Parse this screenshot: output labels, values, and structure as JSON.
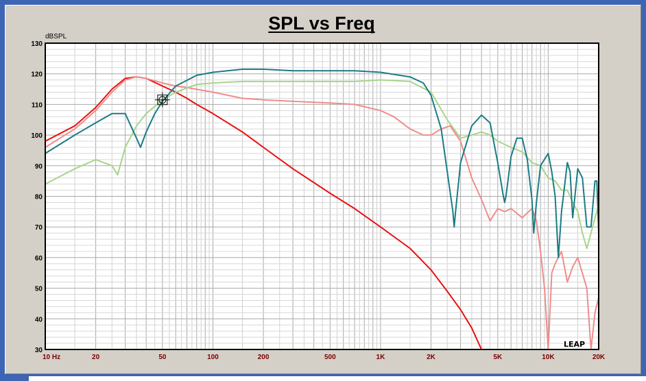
{
  "chart_data": {
    "type": "line",
    "title": "SPL vs Freq",
    "ylabel": "dBSPL",
    "xscale": "log",
    "xlim": [
      10,
      20000
    ],
    "ylim": [
      30,
      130
    ],
    "grid": true,
    "y_ticks": [
      30,
      40,
      50,
      60,
      70,
      80,
      90,
      100,
      110,
      120,
      130
    ],
    "x_ticks": [
      {
        "value": 10,
        "label": "10 Hz"
      },
      {
        "value": 20,
        "label": "20"
      },
      {
        "value": 50,
        "label": "50"
      },
      {
        "value": 100,
        "label": "100"
      },
      {
        "value": 200,
        "label": "200"
      },
      {
        "value": 500,
        "label": "500"
      },
      {
        "value": 1000,
        "label": "1K"
      },
      {
        "value": 2000,
        "label": "2K"
      },
      {
        "value": 5000,
        "label": "5K"
      },
      {
        "value": 10000,
        "label": "10K"
      },
      {
        "value": 20000,
        "label": "20K"
      }
    ],
    "cursor": {
      "x": 50,
      "y": 111.5
    },
    "series": [
      {
        "color": "#e81010",
        "x": [
          10,
          15,
          20,
          25,
          30,
          35,
          40,
          50,
          60,
          70,
          80,
          100,
          150,
          200,
          300,
          500,
          700,
          1000,
          1500,
          2000,
          2500,
          3000,
          3500,
          4000
        ],
        "y": [
          98,
          103,
          109,
          115,
          118.5,
          119,
          118.5,
          116,
          114,
          112,
          110,
          107,
          101,
          96,
          89,
          81,
          76,
          70,
          63,
          56,
          49,
          43,
          37,
          30
        ]
      },
      {
        "color": "#f08c8c",
        "x": [
          10,
          15,
          20,
          25,
          30,
          35,
          40,
          50,
          60,
          70,
          100,
          150,
          200,
          300,
          500,
          700,
          1000,
          1200,
          1500,
          1800,
          2000,
          2300,
          2600,
          3000,
          3500,
          4000,
          4500,
          5000,
          5500,
          6000,
          7000,
          8000,
          8500,
          9000,
          9500,
          10000,
          10500,
          11000,
          12000,
          13000,
          14000,
          15000,
          17000,
          18000,
          19000,
          20000
        ],
        "y": [
          96,
          102,
          108,
          114,
          118,
          119,
          118.5,
          117,
          116,
          115.5,
          114,
          112,
          111.5,
          111,
          110.5,
          110,
          108,
          106,
          102,
          100,
          100,
          102,
          103,
          98,
          86,
          79,
          72,
          76,
          75,
          76,
          73,
          76,
          72,
          62,
          50,
          30,
          55,
          58,
          62,
          52,
          57,
          60,
          50,
          30,
          42,
          47
        ]
      },
      {
        "color": "#a8d48a",
        "x": [
          10,
          15,
          20,
          25,
          27,
          30,
          35,
          40,
          50,
          60,
          80,
          100,
          150,
          200,
          300,
          500,
          700,
          1000,
          1500,
          2000,
          2500,
          3000,
          3500,
          4000,
          4500,
          5000,
          6000,
          7000,
          8000,
          9000,
          10000,
          11000,
          12000,
          13000,
          14000,
          15000,
          16000,
          17000,
          18000,
          19000,
          20000
        ],
        "y": [
          84,
          89,
          92,
          90,
          87,
          96,
          103,
          107,
          111.5,
          114,
          116.5,
          117,
          117.5,
          117.5,
          117.5,
          117.5,
          117.5,
          118,
          117.5,
          114,
          105,
          99,
          100,
          101,
          100,
          98,
          96,
          94.5,
          91,
          90,
          86,
          85,
          82,
          82,
          78,
          75,
          68,
          63,
          68,
          73,
          77
        ]
      },
      {
        "color": "#1a7c84",
        "x": [
          10,
          15,
          20,
          25,
          30,
          35,
          37,
          40,
          45,
          50,
          60,
          80,
          100,
          150,
          200,
          300,
          500,
          700,
          1000,
          1500,
          1800,
          2000,
          2300,
          2500,
          2700,
          2750,
          2800,
          3000,
          3500,
          4000,
          4500,
          5000,
          5400,
          5500,
          5600,
          6000,
          6500,
          7000,
          7500,
          8000,
          8200,
          8500,
          9000,
          10000,
          10500,
          11000,
          11500,
          12000,
          13000,
          13500,
          14000,
          15000,
          16000,
          17000,
          18000,
          19000,
          19500,
          20000
        ],
        "y": [
          94,
          100,
          104,
          107,
          107,
          99,
          96,
          101,
          107,
          111,
          116,
          119.5,
          120.5,
          121.5,
          121.5,
          121,
          121,
          121,
          120.5,
          119,
          117,
          113,
          102,
          88,
          75,
          70,
          75,
          91,
          103,
          106.5,
          104,
          91,
          80,
          78,
          80,
          93,
          99,
          99,
          92,
          79,
          68,
          78,
          90,
          94,
          88,
          80,
          60,
          75,
          91,
          88,
          73,
          89,
          86,
          70,
          70,
          85,
          85,
          68
        ]
      }
    ]
  },
  "logo": {
    "text": "LEAP"
  }
}
